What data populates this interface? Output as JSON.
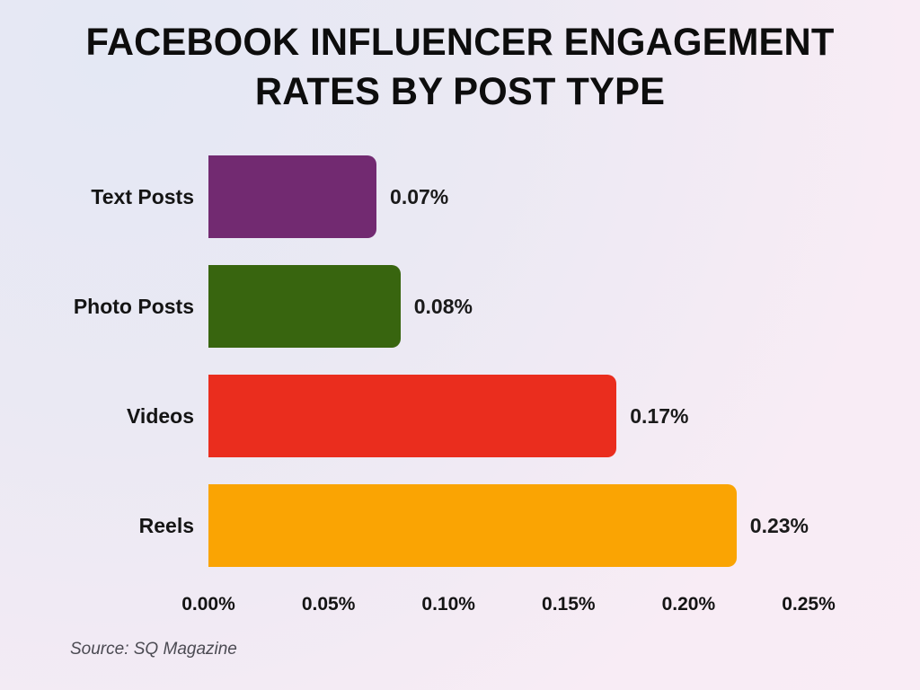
{
  "title": {
    "line1": "FACEBOOK INFLUENCER ENGAGEMENT",
    "line2": "RATES BY POST TYPE"
  },
  "source": "Source: SQ Magazine",
  "colors": {
    "background_start": "#e4e8f4",
    "background_end": "#f9ecf5",
    "text": "#0d0d0d",
    "source_text": "#4b4a52"
  },
  "chart_data": {
    "type": "bar",
    "orientation": "horizontal",
    "title": "FACEBOOK INFLUENCER ENGAGEMENT RATES BY POST TYPE",
    "xlabel": "",
    "ylabel": "",
    "grid": false,
    "legend": false,
    "categories": [
      "Text Posts",
      "Photo Posts",
      "Videos",
      "Reels"
    ],
    "values": [
      0.07,
      0.08,
      0.17,
      0.23
    ],
    "value_labels": [
      "0.07%",
      "0.08%",
      "0.17%",
      "0.23%"
    ],
    "bar_colors": [
      "#722A71",
      "#38650F",
      "#EA2D1E",
      "#FAA403"
    ],
    "xlim": [
      0,
      0.25
    ],
    "x_ticks": [
      "0.00%",
      "0.05%",
      "0.10%",
      "0.15%",
      "0.20%",
      "0.25%"
    ]
  }
}
